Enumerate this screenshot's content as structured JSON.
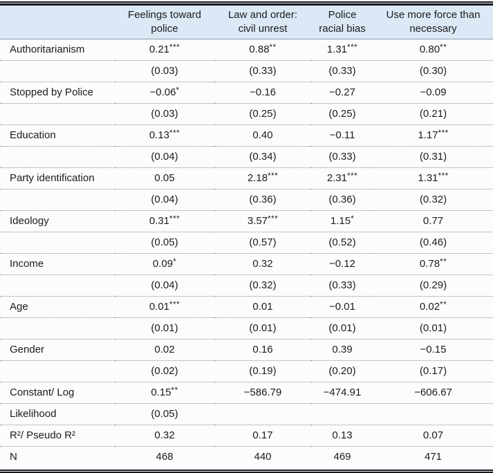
{
  "table": {
    "columns": [
      "",
      "Feelings toward police",
      "Law and order: civil unrest",
      "Police racial bias",
      "Use more force than necessary"
    ],
    "rows": [
      {
        "label": "Authoritarianism",
        "values": [
          "0.21***",
          "0.88**",
          "1.31***",
          "0.80**"
        ]
      },
      {
        "label": "",
        "values": [
          "(0.03)",
          "(0.33)",
          "(0.33)",
          "(0.30)"
        ]
      },
      {
        "label": "Stopped by Police",
        "values": [
          "−0.06*",
          "−0.16",
          "−0.27",
          "−0.09"
        ]
      },
      {
        "label": "",
        "values": [
          "(0.03)",
          "(0.25)",
          "(0.25)",
          "(0.21)"
        ]
      },
      {
        "label": "Education",
        "values": [
          "0.13***",
          "0.40",
          "−0.11",
          "1.17***"
        ]
      },
      {
        "label": "",
        "values": [
          "(0.04)",
          "(0.34)",
          "(0.33)",
          "(0.31)"
        ]
      },
      {
        "label": "Party identification",
        "values": [
          "0.05",
          "2.18***",
          "2.31***",
          "1.31***"
        ]
      },
      {
        "label": "",
        "values": [
          "(0.04)",
          "(0.36)",
          "(0.36)",
          "(0.32)"
        ]
      },
      {
        "label": "Ideology",
        "values": [
          "0.31***",
          "3.57***",
          "1.15*",
          "0.77"
        ]
      },
      {
        "label": "",
        "values": [
          "(0.05)",
          "(0.57)",
          "(0.52)",
          "(0.46)"
        ]
      },
      {
        "label": "Income",
        "values": [
          "0.09*",
          "0.32",
          "−0.12",
          "0.78**"
        ]
      },
      {
        "label": "",
        "values": [
          "(0.04)",
          "(0.32)",
          "(0.33)",
          "(0.29)"
        ]
      },
      {
        "label": "Age",
        "values": [
          "0.01***",
          "0.01",
          "−0.01",
          "0.02**"
        ]
      },
      {
        "label": "",
        "values": [
          "(0.01)",
          "(0.01)",
          "(0.01)",
          "(0.01)"
        ]
      },
      {
        "label": "Gender",
        "values": [
          "0.02",
          "0.16",
          "0.39",
          "−0.15"
        ]
      },
      {
        "label": "",
        "values": [
          "(0.02)",
          "(0.19)",
          "(0.20)",
          "(0.17)"
        ]
      },
      {
        "label": "Constant/ Log",
        "values": [
          "0.15**",
          "−586.79",
          "−474.91",
          "−606.67"
        ]
      },
      {
        "label": "Likelihood",
        "values": [
          "(0.05)",
          "",
          "",
          ""
        ]
      },
      {
        "label": "R²/ Pseudo R²",
        "values": [
          "0.32",
          "0.17",
          "0.13",
          "0.07"
        ]
      },
      {
        "label": "N",
        "values": [
          "468",
          "440",
          "469",
          "471"
        ]
      }
    ],
    "colors": {
      "header_background": "#dbe8f6",
      "rule_color": "#16161e",
      "header_underline": "#8e99a4",
      "dotted_divider": "#8b8b8b",
      "text": "#1b1b1b"
    }
  }
}
